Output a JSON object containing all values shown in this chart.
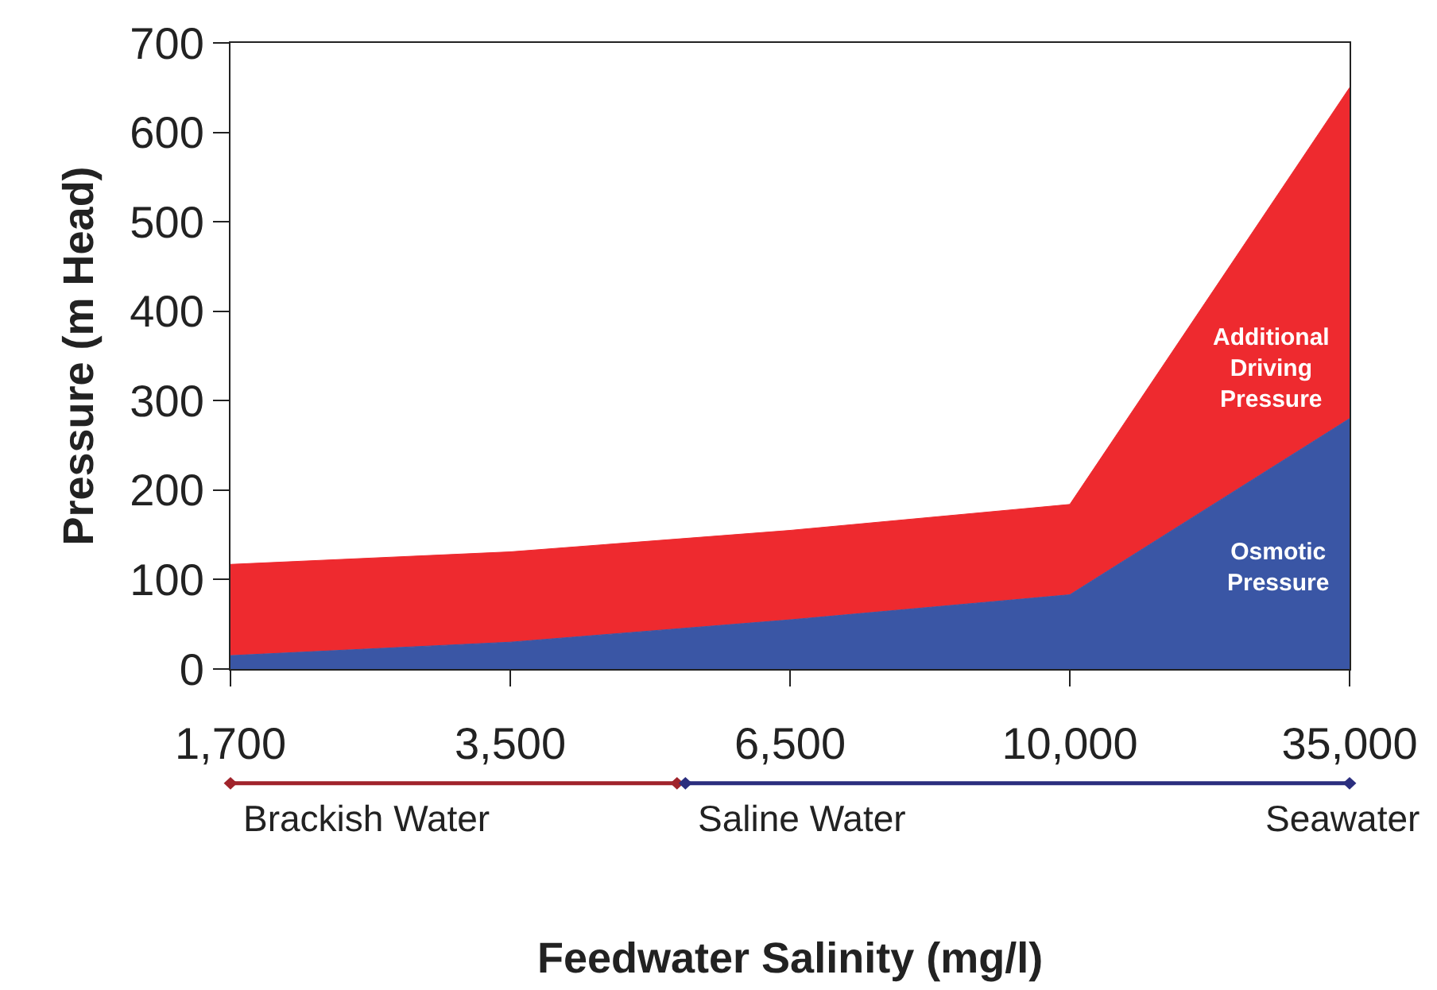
{
  "chart_data": {
    "type": "area",
    "stacked": true,
    "xlabel": "Feedwater Salinity (mg/l)",
    "ylabel": "Pressure (m Head)",
    "categories": [
      "1,700",
      "3,500",
      "6,500",
      "10,000",
      "35,000"
    ],
    "series": [
      {
        "name": "Osmotic Pressure",
        "color": "#3a56a5",
        "values": [
          15,
          30,
          55,
          83,
          280
        ]
      },
      {
        "name": "Additional Driving Pressure",
        "color": "#ee2a2f",
        "values": [
          102,
          101,
          100,
          101,
          370
        ]
      }
    ],
    "ylim": [
      0,
      700
    ],
    "yticks": [
      0,
      100,
      200,
      300,
      400,
      500,
      600,
      700
    ],
    "legend": false,
    "annotations": [
      "Brackish Water",
      "Saline Water",
      "Seawater"
    ]
  }
}
